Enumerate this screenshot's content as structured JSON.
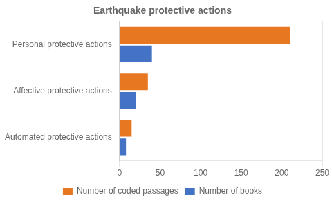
{
  "chart_data": {
    "type": "bar",
    "orientation": "horizontal",
    "title": "Earthquake protective actions",
    "categories": [
      "Personal protective actions",
      "Affective protective actions",
      "Automated protective actions"
    ],
    "series": [
      {
        "name": "Number of coded passages",
        "color": "#E87722",
        "values": [
          210,
          35,
          15
        ]
      },
      {
        "name": "Number of books",
        "color": "#4472C4",
        "values": [
          40,
          20,
          8
        ]
      }
    ],
    "xlim": [
      0,
      250
    ],
    "xticks": [
      0,
      50,
      100,
      150,
      200,
      250
    ],
    "grid": true,
    "legend": "bottom"
  }
}
